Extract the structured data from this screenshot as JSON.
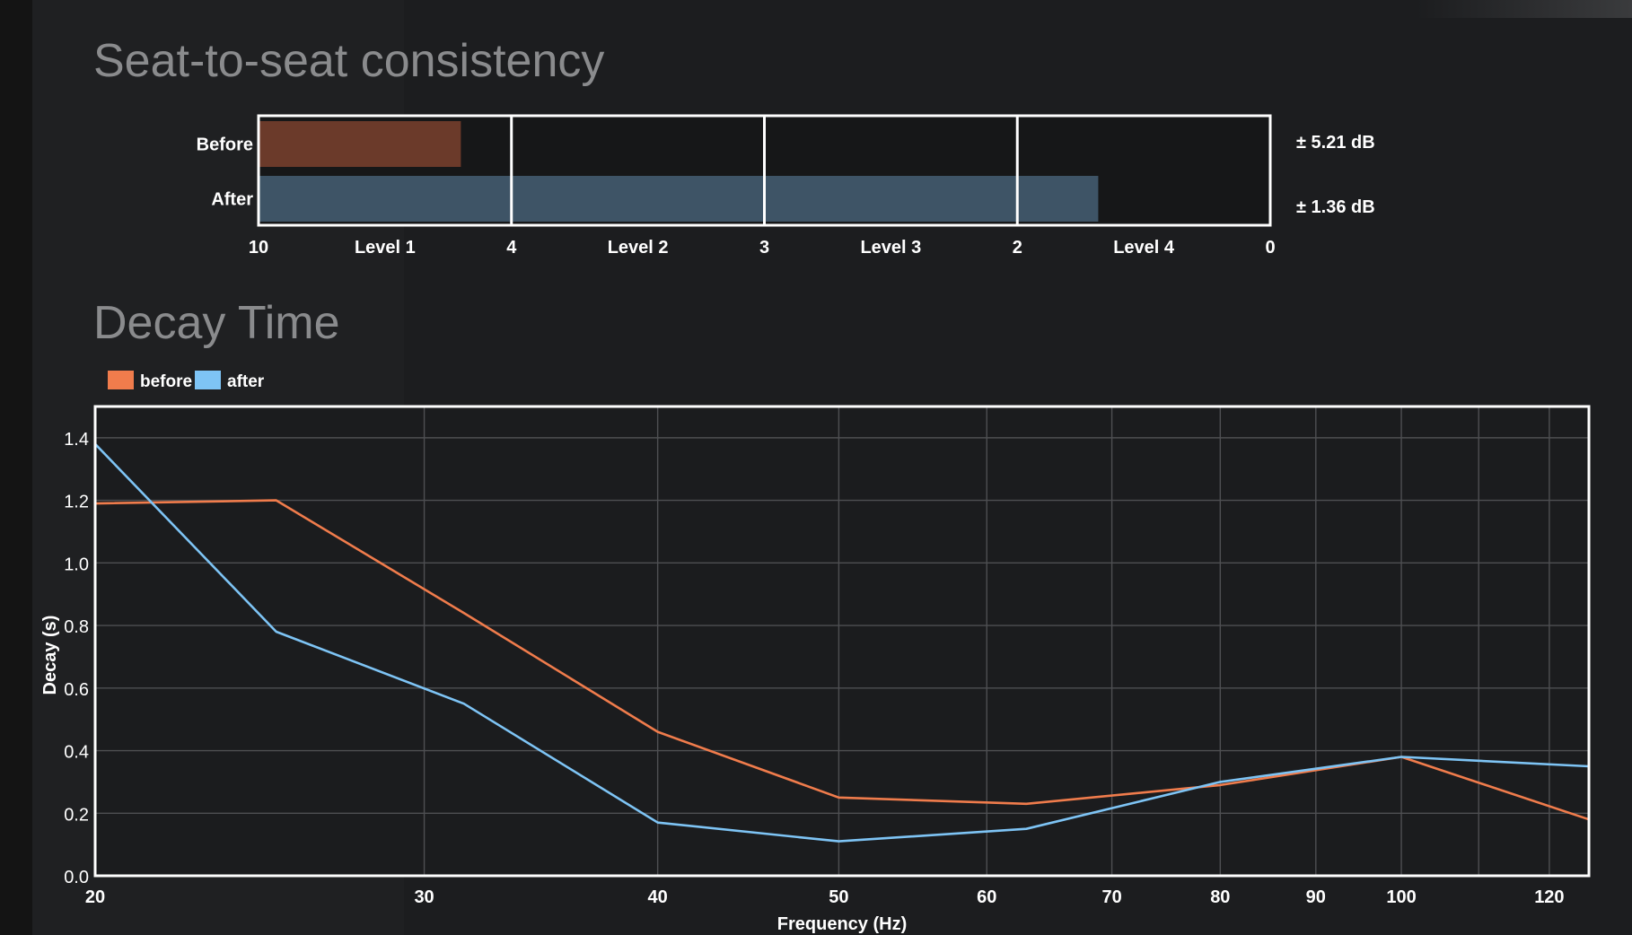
{
  "consistency": {
    "title": "Seat-to-seat consistency",
    "chart_data": {
      "type": "bar",
      "orientation": "horizontal",
      "categories": [
        "Before",
        "After"
      ],
      "values": [
        5.21,
        1.36
      ],
      "value_labels": [
        "± 5.21 dB",
        "± 1.36 dB"
      ],
      "axis_ticks": [
        10,
        4,
        3,
        2,
        0
      ],
      "tick_labels": [
        "10",
        "4",
        "3",
        "2",
        "0"
      ],
      "levels": [
        "Level 1",
        "Level 2",
        "Level 3",
        "Level 4"
      ],
      "bar_fractions": [
        0.2,
        0.83
      ],
      "colors": [
        "#6b3a2a",
        "#3e5466"
      ]
    }
  },
  "decay": {
    "title": "Decay Time",
    "chart_data": {
      "type": "line",
      "xscale": "log",
      "xlabel": "Frequency (Hz)",
      "ylabel": "Decay (s)",
      "xlim": [
        20,
        126
      ],
      "ylim": [
        0,
        1.5
      ],
      "xticks": [
        20,
        30,
        40,
        50,
        60,
        70,
        80,
        90,
        100,
        120
      ],
      "xtick_labels": [
        "20",
        "30",
        "40",
        "50",
        "60",
        "70",
        "80",
        "90",
        "100",
        "120"
      ],
      "yticks": [
        0,
        0.2,
        0.4,
        0.6,
        0.8,
        1.0,
        1.2,
        1.4
      ],
      "ytick_labels": [
        "0.0",
        "0.2",
        "0.4",
        "0.6",
        "0.8",
        "1.0",
        "1.2",
        "1.4"
      ],
      "minor_xticks": [
        110
      ],
      "legend": [
        "before",
        "after"
      ],
      "series": [
        {
          "name": "before",
          "color": "#f07c4c",
          "points": [
            [
              20,
              1.19
            ],
            [
              25,
              1.2
            ],
            [
              31.5,
              0.84
            ],
            [
              40,
              0.46
            ],
            [
              50,
              0.25
            ],
            [
              63,
              0.23
            ],
            [
              80,
              0.29
            ],
            [
              100,
              0.38
            ],
            [
              126,
              0.18
            ]
          ]
        },
        {
          "name": "after",
          "color": "#7ec4f5",
          "points": [
            [
              20,
              1.38
            ],
            [
              25,
              0.78
            ],
            [
              31.5,
              0.55
            ],
            [
              40,
              0.17
            ],
            [
              50,
              0.11
            ],
            [
              63,
              0.15
            ],
            [
              80,
              0.3
            ],
            [
              100,
              0.38
            ],
            [
              126,
              0.35
            ]
          ]
        }
      ]
    }
  }
}
